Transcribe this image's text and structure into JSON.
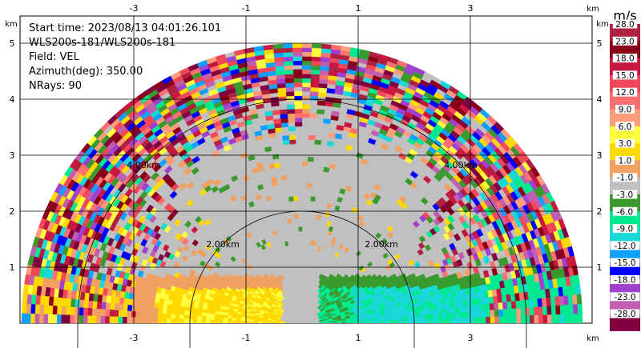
{
  "chart_data": {
    "type": "heatmap",
    "subtype": "radar-rhi-ppi-sector",
    "info_lines": [
      "Start time: 2023/08/13 04:01:26.101",
      "WLS200s-181/WLS200s-181",
      "Field: VEL",
      "Azimuth(deg): 350.00",
      "NRays: 90"
    ],
    "x_unit": "km",
    "y_unit": "km",
    "xlim": [
      -5,
      5
    ],
    "ylim": [
      0,
      6
    ],
    "x_ticks": [
      -3,
      -1,
      1,
      3
    ],
    "y_ticks": [
      1,
      2,
      3,
      4,
      5
    ],
    "range_rings_km": [
      2,
      4
    ],
    "range_ring_labels": [
      "2.00km",
      "4.00km"
    ],
    "max_range_km": 5,
    "colorbar": {
      "unit": "m/s",
      "levels": [
        "28.0",
        "23.0",
        "18.0",
        "15.0",
        "12.0",
        "9.0",
        "6.0",
        "3.0",
        "1.0",
        "-1.0",
        "-3.0",
        "-6.0",
        "-9.0",
        "-12.0",
        "-15.0",
        "-18.0",
        "-23.0",
        "-28.0"
      ],
      "colors": [
        "#b02040",
        "#8b0019",
        "#c81840",
        "#f04858",
        "#ff7070",
        "#ff9c7c",
        "#ffff40",
        "#ffd800",
        "#f0a060",
        "#c0c0c0",
        "#3a9a2e",
        "#00e890",
        "#1ad8d8",
        "#10a0ff",
        "#0000ff",
        "#a040d0",
        "#c05fb0",
        "#800040"
      ]
    },
    "field": "VEL"
  }
}
